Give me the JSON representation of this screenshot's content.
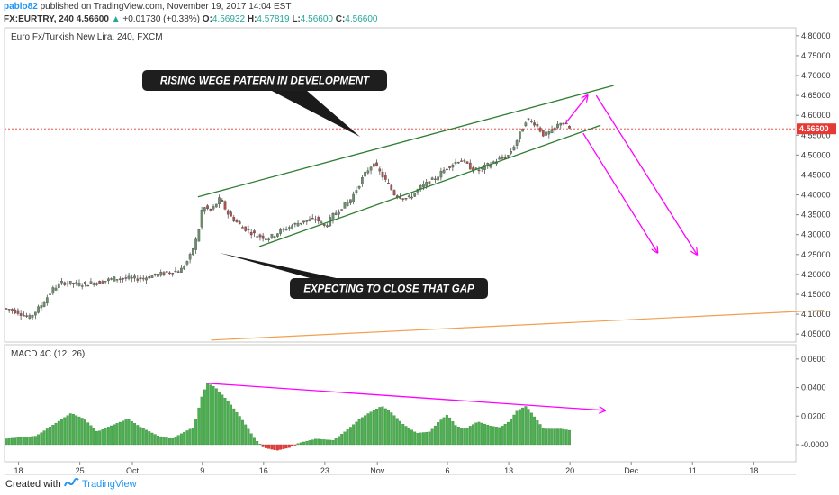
{
  "header": {
    "author": "pablo82",
    "published": " published on TradingView.com, November 19, 2017 14:04 EST",
    "symbol": "FX:EURTRY, 240",
    "last": "4.56600",
    "change": "+0.01730 (+0.38%)",
    "open_label": "O:",
    "open": "4.56932",
    "high_label": "H:",
    "high": "4.57819",
    "low_label": "L:",
    "low": "4.56600",
    "close_label": "C:",
    "close": "4.56600"
  },
  "chart_data": [
    {
      "type": "candlestick",
      "title": "Euro Fx/Turkish New Lira, 240, FXCM",
      "ylim": [
        4.03,
        4.82
      ],
      "y_ticks": [
        "4.80000",
        "4.75000",
        "4.70000",
        "4.65000",
        "4.60000",
        "4.55000",
        "4.50000",
        "4.45000",
        "4.40000",
        "4.35000",
        "4.30000",
        "4.25000",
        "4.20000",
        "4.15000",
        "4.10000",
        "4.05000"
      ],
      "y_tick_values": [
        4.8,
        4.75,
        4.7,
        4.65,
        4.6,
        4.55,
        4.5,
        4.45,
        4.4,
        4.35,
        4.3,
        4.25,
        4.2,
        4.15,
        4.1,
        4.05
      ],
      "x_ticks": [
        "18",
        "25",
        "Oct",
        "9",
        "16",
        "23",
        "Nov",
        "6",
        "13",
        "20",
        "Dec",
        "11",
        "18"
      ],
      "x_tick_days": [
        0,
        7,
        13,
        21,
        28,
        35,
        41,
        49,
        56,
        63,
        70,
        77,
        84
      ],
      "current_price": 4.566,
      "current_price_label": "4.56600",
      "price_path": [
        [
          -1.6,
          4.115
        ],
        [
          0,
          4.105
        ],
        [
          1.2,
          4.09
        ],
        [
          2.5,
          4.12
        ],
        [
          4,
          4.165
        ],
        [
          5,
          4.18
        ],
        [
          7,
          4.175
        ],
        [
          9,
          4.18
        ],
        [
          11,
          4.19
        ],
        [
          14,
          4.19
        ],
        [
          17,
          4.205
        ],
        [
          18.5,
          4.21
        ],
        [
          19.5,
          4.24
        ],
        [
          20.5,
          4.3
        ],
        [
          21,
          4.37
        ],
        [
          22,
          4.36
        ],
        [
          23,
          4.39
        ],
        [
          24,
          4.35
        ],
        [
          25.5,
          4.32
        ],
        [
          27,
          4.3
        ],
        [
          28.5,
          4.29
        ],
        [
          30,
          4.31
        ],
        [
          32,
          4.33
        ],
        [
          34,
          4.34
        ],
        [
          35,
          4.32
        ],
        [
          36,
          4.35
        ],
        [
          38,
          4.39
        ],
        [
          39.5,
          4.45
        ],
        [
          40.5,
          4.48
        ],
        [
          41.5,
          4.45
        ],
        [
          43,
          4.4
        ],
        [
          44.5,
          4.39
        ],
        [
          46,
          4.42
        ],
        [
          47.5,
          4.44
        ],
        [
          49,
          4.47
        ],
        [
          50.5,
          4.49
        ],
        [
          51.5,
          4.47
        ],
        [
          52.5,
          4.46
        ],
        [
          54,
          4.48
        ],
        [
          55,
          4.49
        ],
        [
          56,
          4.5
        ],
        [
          57,
          4.54
        ],
        [
          58,
          4.59
        ],
        [
          59,
          4.58
        ],
        [
          60,
          4.55
        ],
        [
          61,
          4.56
        ],
        [
          62,
          4.585
        ],
        [
          63,
          4.566
        ]
      ],
      "annotations": {
        "wedge_upper": [
          [
            20.5,
            4.395
          ],
          [
            68,
            4.675
          ]
        ],
        "wedge_lower": [
          [
            27.5,
            4.27
          ],
          [
            66.5,
            4.575
          ]
        ],
        "gap_line": [
          [
            22,
            4.035
          ],
          [
            92,
            4.11
          ]
        ],
        "arrows_magenta": [
          [
            [
              62.5,
              4.58
            ],
            [
              65,
              4.65
            ]
          ],
          [
            [
              64.5,
              4.555
            ],
            [
              73,
              4.255
            ]
          ],
          [
            [
              66,
              4.65
            ],
            [
              77.5,
              4.25
            ]
          ]
        ],
        "callout_top": "RISING WEGE PATERN IN DEVELOPMENT",
        "callout_bottom": "EXPECTING TO CLOSE THAT GAP"
      }
    },
    {
      "type": "bar",
      "title": "MACD 4C (12, 26)",
      "ylim": [
        -0.012,
        0.07
      ],
      "y_ticks": [
        "0.0600",
        "0.0400",
        "0.0200",
        "-0.0000"
      ],
      "y_tick_values": [
        0.06,
        0.04,
        0.02,
        0.0
      ],
      "histogram_profile": [
        [
          -1.6,
          0.004
        ],
        [
          2,
          0.006
        ],
        [
          4,
          0.014
        ],
        [
          6,
          0.022
        ],
        [
          7.5,
          0.018
        ],
        [
          9,
          0.009
        ],
        [
          10.5,
          0.013
        ],
        [
          12.5,
          0.018
        ],
        [
          14,
          0.012
        ],
        [
          16,
          0.006
        ],
        [
          17.5,
          0.004
        ],
        [
          19,
          0.009
        ],
        [
          20,
          0.012
        ],
        [
          21,
          0.035
        ],
        [
          21.6,
          0.043
        ],
        [
          22.5,
          0.04
        ],
        [
          24,
          0.03
        ],
        [
          25.5,
          0.018
        ],
        [
          27,
          0.004
        ],
        [
          28,
          -0.002
        ],
        [
          29.5,
          -0.004
        ],
        [
          31,
          -0.002
        ],
        [
          32,
          0.001
        ],
        [
          34,
          0.004
        ],
        [
          36,
          0.003
        ],
        [
          37.5,
          0.01
        ],
        [
          39,
          0.018
        ],
        [
          40,
          0.022
        ],
        [
          41.5,
          0.027
        ],
        [
          42.5,
          0.023
        ],
        [
          44,
          0.014
        ],
        [
          45.5,
          0.008
        ],
        [
          47,
          0.009
        ],
        [
          48,
          0.016
        ],
        [
          49,
          0.021
        ],
        [
          50,
          0.013
        ],
        [
          51,
          0.011
        ],
        [
          52.5,
          0.016
        ],
        [
          54,
          0.013
        ],
        [
          55,
          0.012
        ],
        [
          56,
          0.016
        ],
        [
          57,
          0.024
        ],
        [
          58,
          0.027
        ],
        [
          59,
          0.019
        ],
        [
          60,
          0.011
        ],
        [
          61,
          0.011
        ],
        [
          62,
          0.011
        ],
        [
          63,
          0.01
        ]
      ],
      "trend_line": [
        [
          21.6,
          0.043
        ],
        [
          67,
          0.024
        ]
      ]
    }
  ],
  "footer": {
    "created": "Created with",
    "brand": "TradingView"
  },
  "colors": {
    "up": "#26a69a",
    "wedge": "#2e7d32",
    "arrow": "#ff00ff",
    "gap": "#f0a050",
    "price_line": "#e53935",
    "hist_pos": "#4caf50",
    "hist_neg": "#e53935"
  }
}
